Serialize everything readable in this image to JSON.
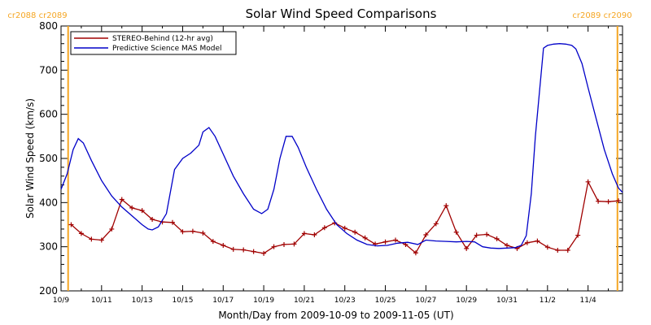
{
  "chart_data": {
    "type": "line",
    "title": "Solar Wind Speed Comparisons",
    "xlabel": "Month/Day from 2009-10-09 to 2009-11-05 (UT)",
    "ylabel": "Solar Wind Speed (km/s)",
    "xlim": [
      0,
      27.7
    ],
    "ylim": [
      200,
      800
    ],
    "x_unit": "days since 2009-10-09",
    "x_ticks": [
      {
        "x": 0,
        "label": "10/9"
      },
      {
        "x": 2,
        "label": "10/11"
      },
      {
        "x": 4,
        "label": "10/13"
      },
      {
        "x": 6,
        "label": "10/15"
      },
      {
        "x": 8,
        "label": "10/17"
      },
      {
        "x": 10,
        "label": "10/19"
      },
      {
        "x": 12,
        "label": "10/21"
      },
      {
        "x": 14,
        "label": "10/23"
      },
      {
        "x": 16,
        "label": "10/25"
      },
      {
        "x": 18,
        "label": "10/27"
      },
      {
        "x": 20,
        "label": "10/29"
      },
      {
        "x": 22,
        "label": "10/31"
      },
      {
        "x": 24,
        "label": "11/2"
      },
      {
        "x": 26,
        "label": "11/4"
      }
    ],
    "y_ticks": [
      200,
      300,
      400,
      500,
      600,
      700,
      800
    ],
    "carrington_markers": [
      {
        "x": 0.35,
        "label": "cr2088 cr2089",
        "position": "left"
      },
      {
        "x": 27.45,
        "label": "cr2089 cr2090",
        "position": "right"
      }
    ],
    "legend": {
      "placement": "top-left"
    },
    "series": [
      {
        "name": "STEREO-Behind (12-hr avg)",
        "color": "#a00000",
        "marker": "plus",
        "points": [
          [
            0.5,
            350
          ],
          [
            1.0,
            330
          ],
          [
            1.5,
            317
          ],
          [
            2.0,
            315
          ],
          [
            2.5,
            340
          ],
          [
            3.0,
            407
          ],
          [
            3.5,
            388
          ],
          [
            4.0,
            382
          ],
          [
            4.5,
            362
          ],
          [
            5.0,
            356
          ],
          [
            5.5,
            355
          ],
          [
            6.0,
            334
          ],
          [
            6.5,
            335
          ],
          [
            7.0,
            331
          ],
          [
            7.5,
            312
          ],
          [
            8.0,
            303
          ],
          [
            8.5,
            294
          ],
          [
            9.0,
            293
          ],
          [
            9.5,
            289
          ],
          [
            10.0,
            285
          ],
          [
            10.5,
            300
          ],
          [
            11.0,
            305
          ],
          [
            11.5,
            306
          ],
          [
            12.0,
            330
          ],
          [
            12.5,
            327
          ],
          [
            13.0,
            343
          ],
          [
            13.5,
            354
          ],
          [
            14.0,
            342
          ],
          [
            14.5,
            333
          ],
          [
            15.0,
            320
          ],
          [
            15.5,
            306
          ],
          [
            16.0,
            311
          ],
          [
            16.5,
            315
          ],
          [
            17.0,
            305
          ],
          [
            17.5,
            286
          ],
          [
            18.0,
            327
          ],
          [
            18.5,
            352
          ],
          [
            19.0,
            393
          ],
          [
            19.5,
            333
          ],
          [
            20.0,
            296
          ],
          [
            20.5,
            326
          ],
          [
            21.0,
            328
          ],
          [
            21.5,
            318
          ],
          [
            22.0,
            303
          ],
          [
            22.5,
            296
          ],
          [
            23.0,
            309
          ],
          [
            23.5,
            313
          ],
          [
            24.0,
            299
          ],
          [
            24.5,
            292
          ],
          [
            25.0,
            292
          ],
          [
            25.5,
            326
          ],
          [
            26.0,
            447
          ],
          [
            26.5,
            403
          ],
          [
            27.0,
            402
          ],
          [
            27.5,
            404
          ]
        ]
      },
      {
        "name": "Predictive Science MAS Model",
        "color": "#0000c8",
        "marker": "none",
        "points": [
          [
            0.0,
            430
          ],
          [
            0.3,
            465
          ],
          [
            0.6,
            520
          ],
          [
            0.85,
            545
          ],
          [
            1.1,
            535
          ],
          [
            1.5,
            495
          ],
          [
            2.0,
            450
          ],
          [
            2.5,
            415
          ],
          [
            3.0,
            390
          ],
          [
            3.5,
            370
          ],
          [
            4.0,
            350
          ],
          [
            4.3,
            340
          ],
          [
            4.5,
            338
          ],
          [
            4.8,
            345
          ],
          [
            5.2,
            375
          ],
          [
            5.6,
            475
          ],
          [
            6.0,
            500
          ],
          [
            6.4,
            512
          ],
          [
            6.8,
            530
          ],
          [
            7.0,
            560
          ],
          [
            7.3,
            570
          ],
          [
            7.6,
            550
          ],
          [
            8.0,
            510
          ],
          [
            8.5,
            460
          ],
          [
            9.0,
            420
          ],
          [
            9.5,
            385
          ],
          [
            9.9,
            375
          ],
          [
            10.2,
            385
          ],
          [
            10.5,
            430
          ],
          [
            10.8,
            500
          ],
          [
            11.1,
            550
          ],
          [
            11.4,
            550
          ],
          [
            11.7,
            525
          ],
          [
            12.1,
            480
          ],
          [
            12.6,
            430
          ],
          [
            13.1,
            385
          ],
          [
            13.6,
            350
          ],
          [
            14.1,
            330
          ],
          [
            14.6,
            315
          ],
          [
            15.1,
            305
          ],
          [
            15.6,
            302
          ],
          [
            16.1,
            303
          ],
          [
            16.6,
            308
          ],
          [
            17.1,
            310
          ],
          [
            17.6,
            305
          ],
          [
            18.0,
            315
          ],
          [
            18.5,
            313
          ],
          [
            19.0,
            312
          ],
          [
            19.5,
            311
          ],
          [
            20.0,
            312
          ],
          [
            20.4,
            311
          ],
          [
            20.8,
            300
          ],
          [
            21.2,
            297
          ],
          [
            21.6,
            296
          ],
          [
            22.0,
            297
          ],
          [
            22.4,
            298
          ],
          [
            22.7,
            303
          ],
          [
            22.95,
            325
          ],
          [
            23.2,
            420
          ],
          [
            23.4,
            550
          ],
          [
            23.6,
            650
          ],
          [
            23.8,
            750
          ],
          [
            24.0,
            756
          ],
          [
            24.3,
            759
          ],
          [
            24.6,
            760
          ],
          [
            24.9,
            759
          ],
          [
            25.2,
            756
          ],
          [
            25.4,
            748
          ],
          [
            25.7,
            715
          ],
          [
            26.0,
            660
          ],
          [
            26.4,
            590
          ],
          [
            26.8,
            520
          ],
          [
            27.2,
            465
          ],
          [
            27.5,
            433
          ],
          [
            27.7,
            423
          ]
        ]
      }
    ]
  }
}
